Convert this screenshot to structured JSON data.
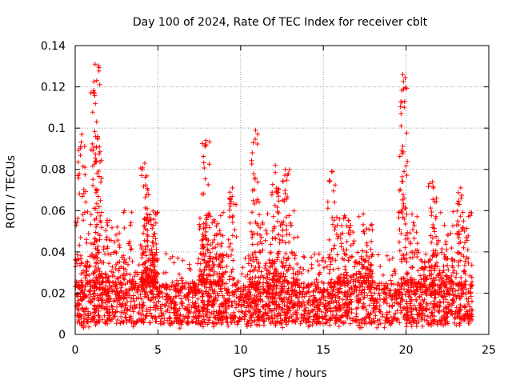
{
  "chart_data": {
    "type": "scatter",
    "title": "Day 100 of 2024, Rate Of TEC Index for receiver cblt",
    "xlabel": "GPS time / hours",
    "ylabel": "ROTI / TECUs",
    "xlim": [
      0,
      25
    ],
    "ylim": [
      0,
      0.14
    ],
    "x_ticks": [
      0,
      5,
      10,
      15,
      20,
      25
    ],
    "x_tick_labels": [
      "0",
      "5",
      "10",
      "15",
      "20",
      "25"
    ],
    "y_ticks": [
      0,
      0.02,
      0.04,
      0.06,
      0.08,
      0.1,
      0.12,
      0.14
    ],
    "y_tick_labels": [
      "0",
      "0.02",
      "0.04",
      "0.06",
      "0.08",
      "0.1",
      "0.12",
      "0.14"
    ],
    "grid": true,
    "marker": "+",
    "series_color": "#ff0000",
    "grid_color": "#a0a0a0",
    "data_range_hours": [
      0,
      24
    ],
    "baseline_band": [
      0.005,
      0.025
    ],
    "peaks": [
      {
        "x": 0.4,
        "y": 0.097
      },
      {
        "x": 1.2,
        "y": 0.131
      },
      {
        "x": 1.3,
        "y": 0.123
      },
      {
        "x": 1.35,
        "y": 0.096
      },
      {
        "x": 4.2,
        "y": 0.083
      },
      {
        "x": 7.9,
        "y": 0.094
      },
      {
        "x": 9.5,
        "y": 0.071
      },
      {
        "x": 10.9,
        "y": 0.099
      },
      {
        "x": 12.1,
        "y": 0.082
      },
      {
        "x": 12.7,
        "y": 0.08
      },
      {
        "x": 15.5,
        "y": 0.079
      },
      {
        "x": 19.8,
        "y": 0.126
      },
      {
        "x": 19.85,
        "y": 0.119
      },
      {
        "x": 21.6,
        "y": 0.074
      },
      {
        "x": 23.3,
        "y": 0.071
      }
    ]
  }
}
